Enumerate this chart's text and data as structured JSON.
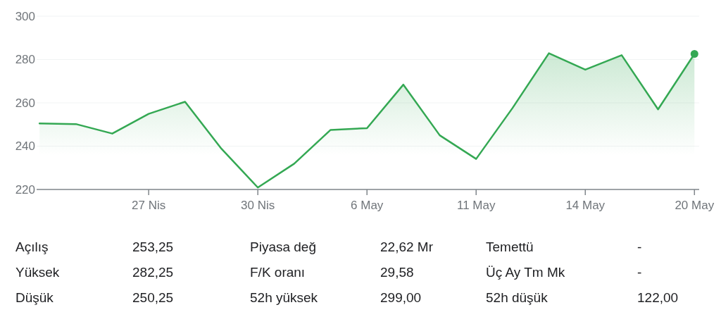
{
  "chart_data": {
    "type": "area",
    "categories": [
      null,
      null,
      null,
      "27 Nis",
      null,
      null,
      "30 Nis",
      null,
      null,
      "6 May",
      null,
      null,
      "11 May",
      null,
      null,
      "14 May",
      null,
      null,
      "20 May"
    ],
    "series": [
      {
        "color": "#34a853",
        "values": [
          250.5,
          250.2,
          245.8,
          254.9,
          260.5,
          238.8,
          220.9,
          231.9,
          247.5,
          248.3,
          268.4,
          245.0,
          234.1,
          257.6,
          282.9,
          275.3,
          282.0,
          257.0,
          282.6
        ]
      },
      {
        "type": "scatter",
        "color": "#34a853",
        "values": [
          null,
          null,
          null,
          null,
          null,
          null,
          null,
          null,
          null,
          null,
          null,
          null,
          null,
          null,
          null,
          null,
          null,
          null,
          282.6
        ]
      }
    ],
    "ylim": [
      220,
      300
    ],
    "yticks": [
      220,
      240,
      260,
      280,
      300
    ],
    "grid": "y",
    "annotations": [
      "Açılış",
      "253,25",
      "Piyasa değ",
      "22,62 Mr",
      "Temettü",
      "-",
      "Yüksek",
      "282,25",
      "F/K oranı",
      "29,58",
      "Üç Ay Tm Mk",
      "-",
      "Düşük",
      "250,25",
      "52h yüksek",
      "299,00",
      "52h düşük",
      "122,00"
    ]
  }
}
